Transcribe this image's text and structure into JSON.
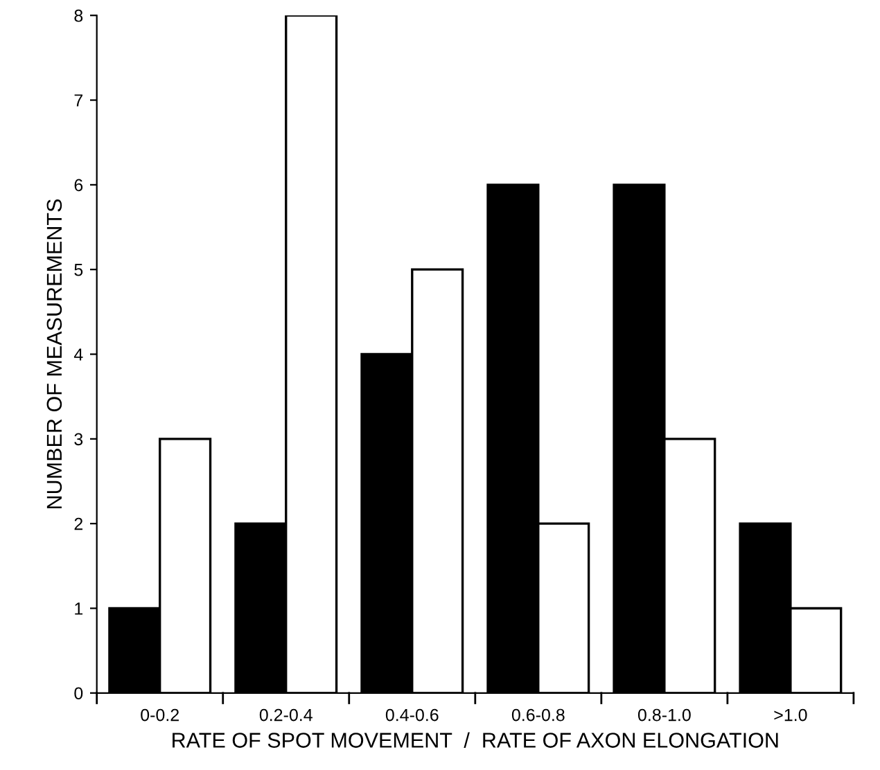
{
  "chart_data": {
    "type": "bar",
    "xlabel": "RATE OF SPOT MOVEMENT  /  RATE OF AXON ELONGATION",
    "ylabel": "NUMBER OF MEASUREMENTS",
    "categories": [
      "0-0.2",
      "0.2-0.4",
      "0.4-0.6",
      "0.6-0.8",
      "0.8-1.0",
      ">1.0"
    ],
    "series": [
      {
        "color": "#000000",
        "values": [
          1,
          2,
          4,
          6,
          6,
          2
        ]
      },
      {
        "color": "#ffffff",
        "values": [
          3,
          8,
          5,
          2,
          3,
          1
        ]
      }
    ],
    "ylim": [
      0,
      8
    ],
    "yticks": [
      0,
      1,
      2,
      3,
      4,
      5,
      6,
      7,
      8
    ],
    "grid": false
  }
}
